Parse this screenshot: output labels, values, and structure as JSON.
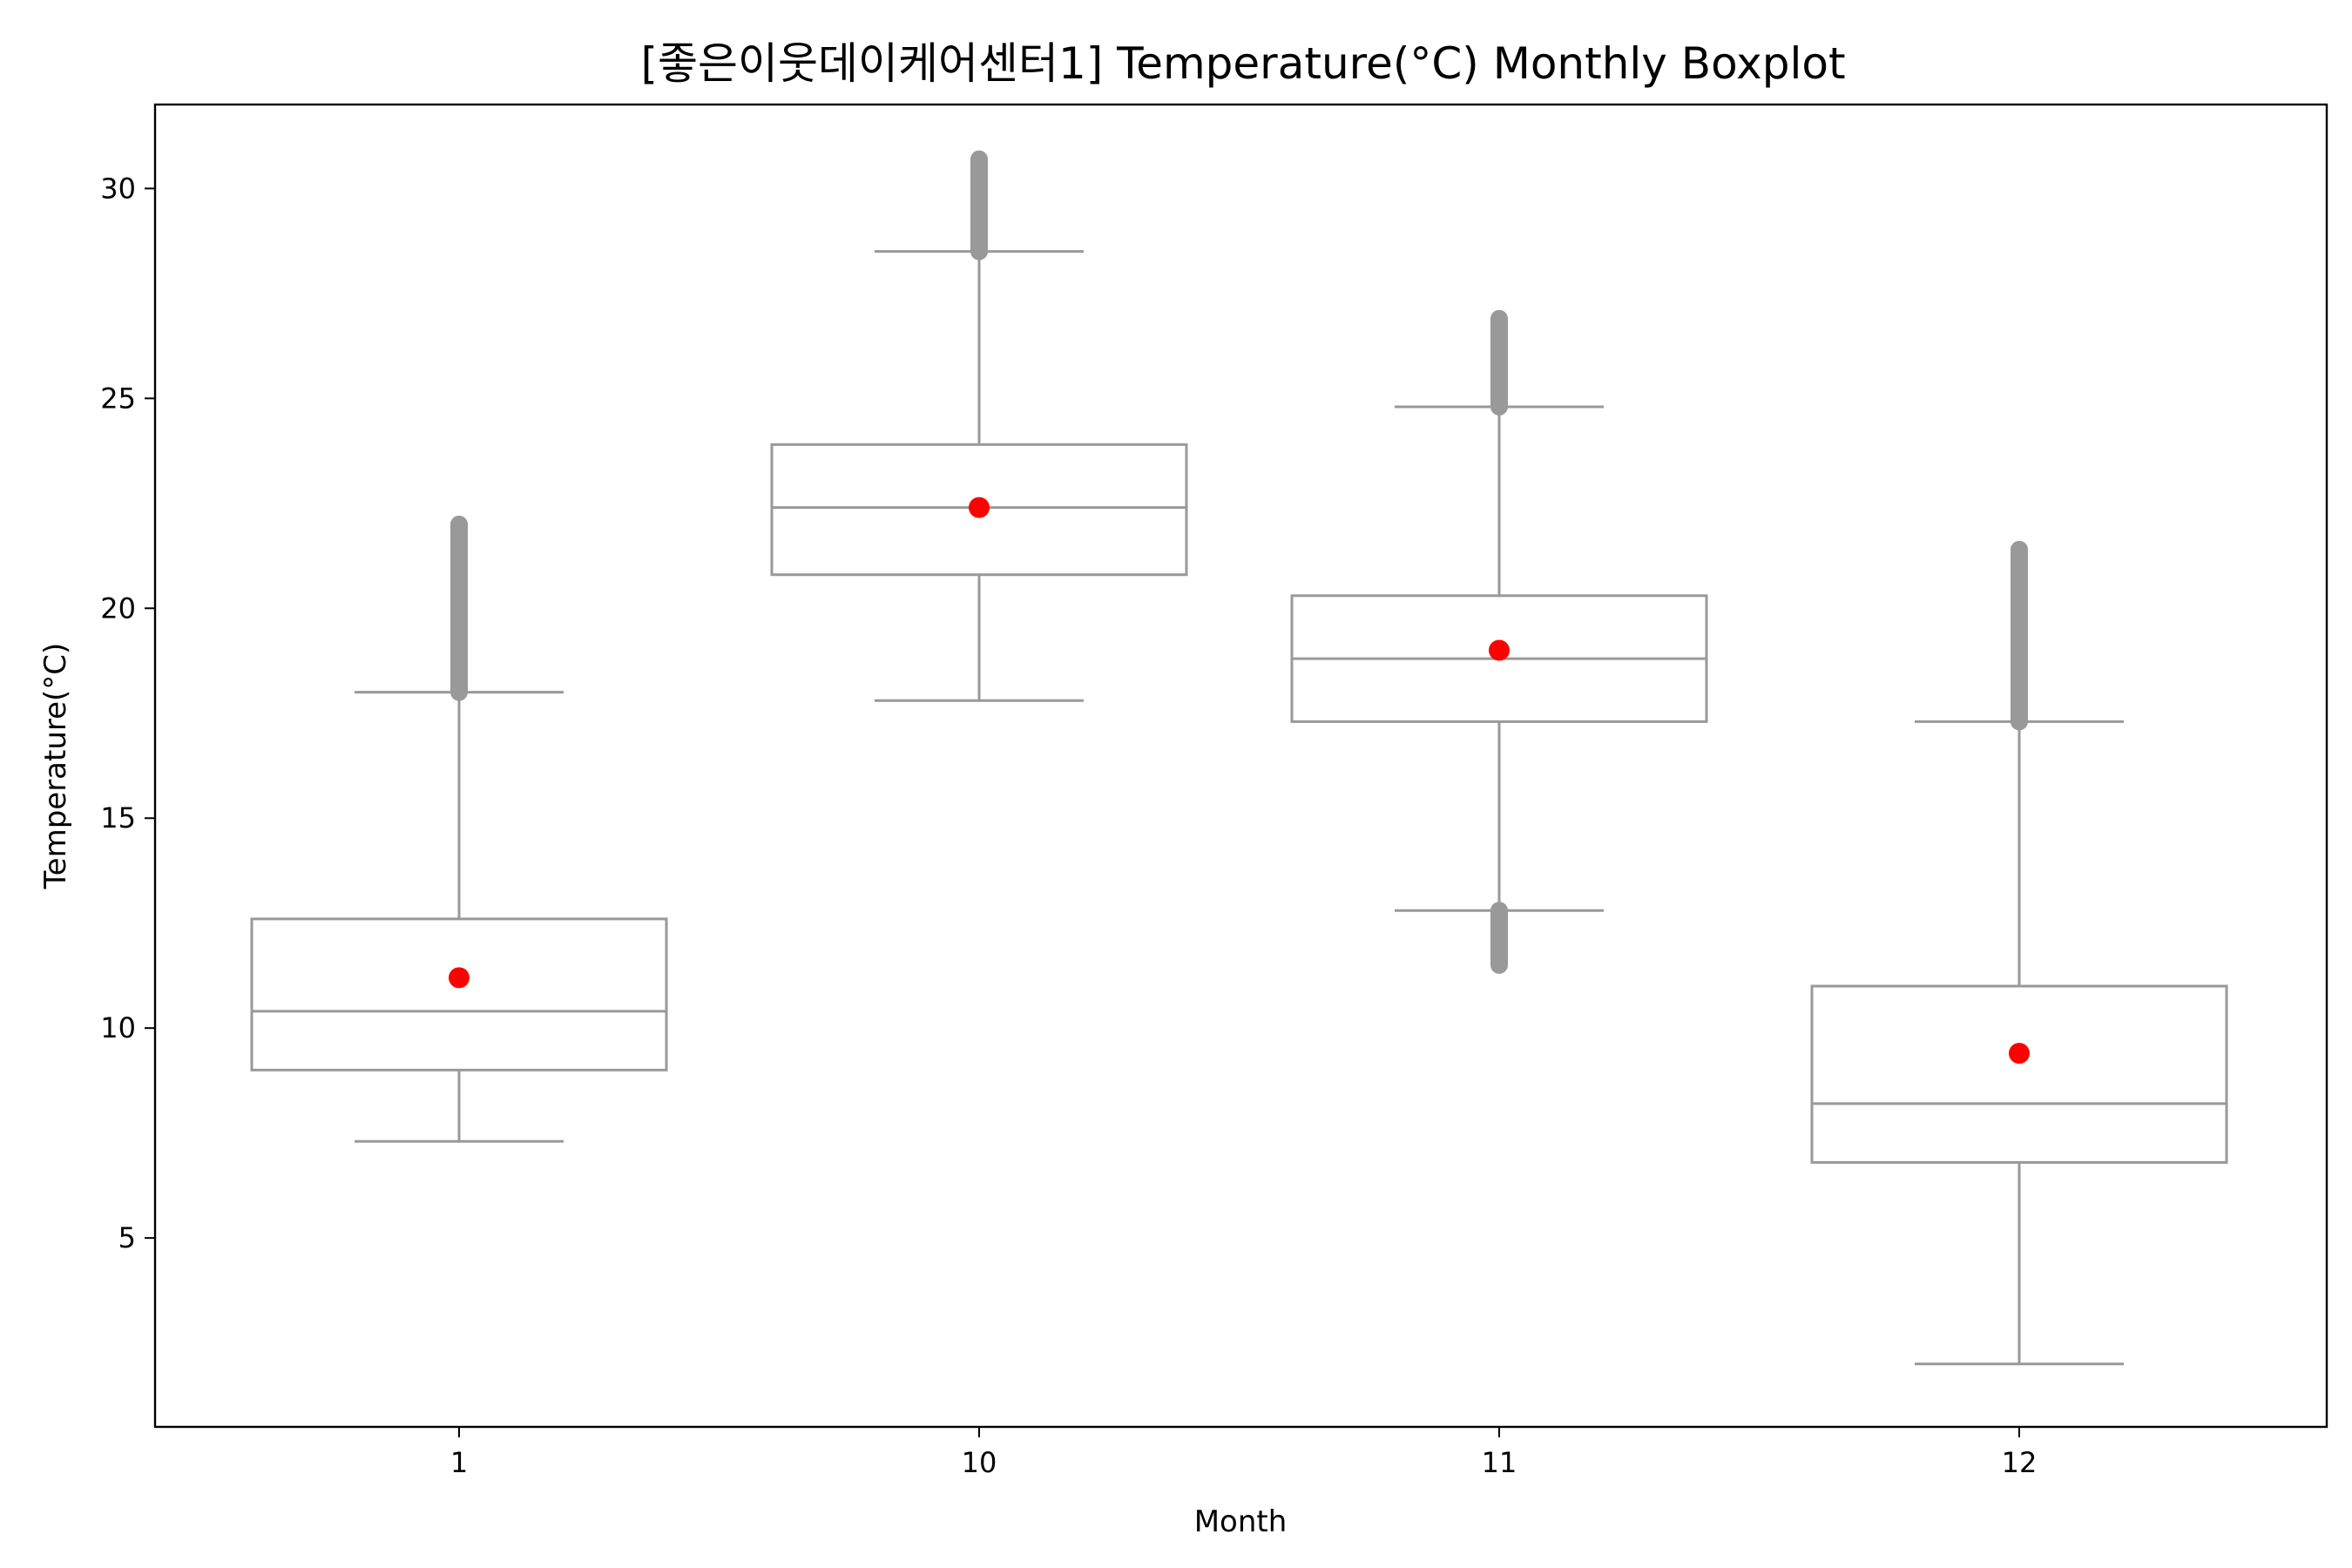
{
  "chart_data": {
    "type": "boxplot",
    "title": "[좋은이웃데이케어센터1] Temperature(°C) Monthly Boxplot",
    "xlabel": "Month",
    "ylabel": "Temperature(°C)",
    "categories": [
      "1",
      "10",
      "11",
      "12"
    ],
    "ylim": [
      0.5,
      32
    ],
    "yticks": [
      5,
      10,
      15,
      20,
      25,
      30
    ],
    "grid": false,
    "legend": "none",
    "colors": {
      "box": "#999999",
      "outlier": "#999999",
      "mean": "#ff0000",
      "frame": "#000000"
    },
    "boxes": [
      {
        "category": "1",
        "whisker_low": 7.3,
        "q1": 9.0,
        "median": 10.4,
        "q3": 12.6,
        "whisker_high": 18.0,
        "mean": 11.2,
        "outliers_high": [
          18.0,
          22.0
        ],
        "outliers_low": null
      },
      {
        "category": "10",
        "whisker_low": 17.8,
        "q1": 20.8,
        "median": 22.4,
        "q3": 23.9,
        "whisker_high": 28.5,
        "mean": 22.4,
        "outliers_high": [
          28.5,
          30.7
        ],
        "outliers_low": null
      },
      {
        "category": "11",
        "whisker_low": 12.8,
        "q1": 17.3,
        "median": 18.8,
        "q3": 20.3,
        "whisker_high": 24.8,
        "mean": 19.0,
        "outliers_high": [
          24.8,
          26.9
        ],
        "outliers_low": [
          11.5,
          12.8
        ]
      },
      {
        "category": "12",
        "whisker_low": 2.0,
        "q1": 6.8,
        "median": 8.2,
        "q3": 11.0,
        "whisker_high": 17.3,
        "mean": 9.4,
        "outliers_high": [
          17.3,
          21.4
        ],
        "outliers_low": null
      }
    ]
  }
}
